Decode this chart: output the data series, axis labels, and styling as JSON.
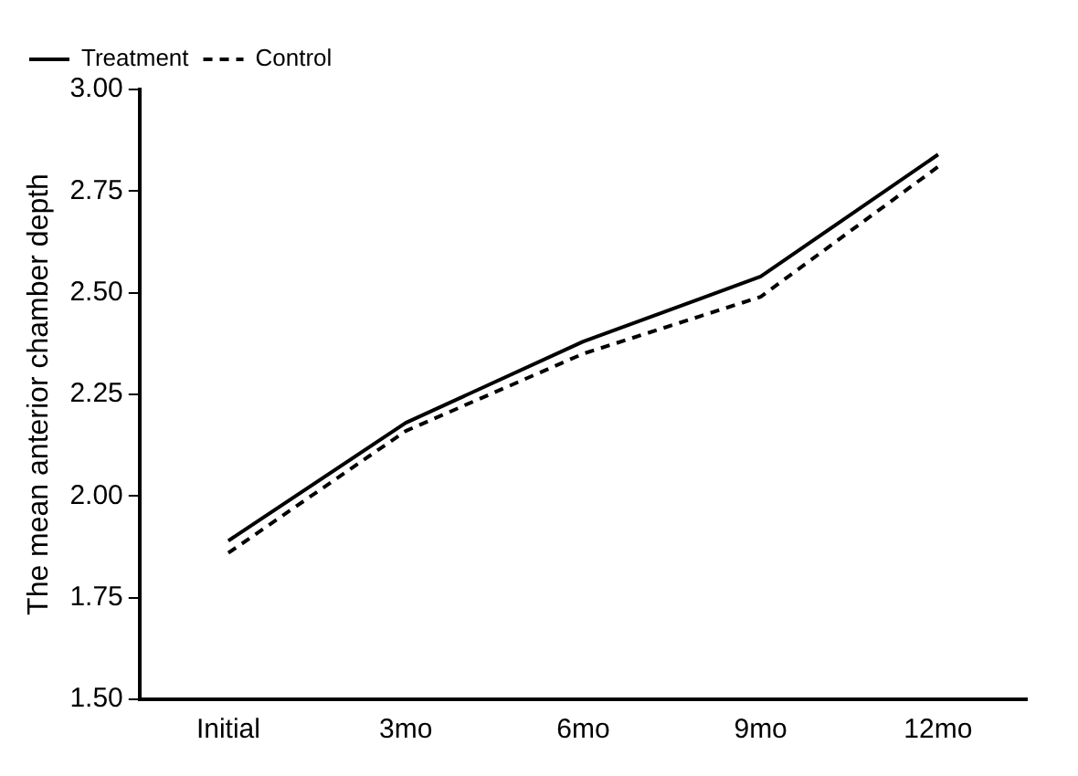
{
  "chart_data": {
    "type": "line",
    "ylabel": "The mean anterior chamber depth",
    "categories": [
      "Initial",
      "3mo",
      "6mo",
      "9mo",
      "12mo"
    ],
    "series": [
      {
        "name": "Treatment",
        "color": "#000000",
        "line_style": "solid",
        "values": [
          1.89,
          2.18,
          2.38,
          2.54,
          2.84
        ]
      },
      {
        "name": "Control",
        "color": "#000000",
        "line_style": "dashed",
        "values": [
          1.86,
          2.16,
          2.35,
          2.49,
          2.81
        ]
      }
    ],
    "ylim": [
      1.5,
      3.0
    ],
    "yticks": [
      {
        "value": 1.5,
        "label": "1.50"
      },
      {
        "value": 1.75,
        "label": "1.75"
      },
      {
        "value": 2.0,
        "label": "2.00"
      },
      {
        "value": 2.25,
        "label": "2.25"
      },
      {
        "value": 2.5,
        "label": "2.50"
      },
      {
        "value": 2.75,
        "label": "2.75"
      },
      {
        "value": 3.0,
        "label": "3.00"
      }
    ],
    "grid": false,
    "legend": "top left",
    "marker": "none"
  }
}
